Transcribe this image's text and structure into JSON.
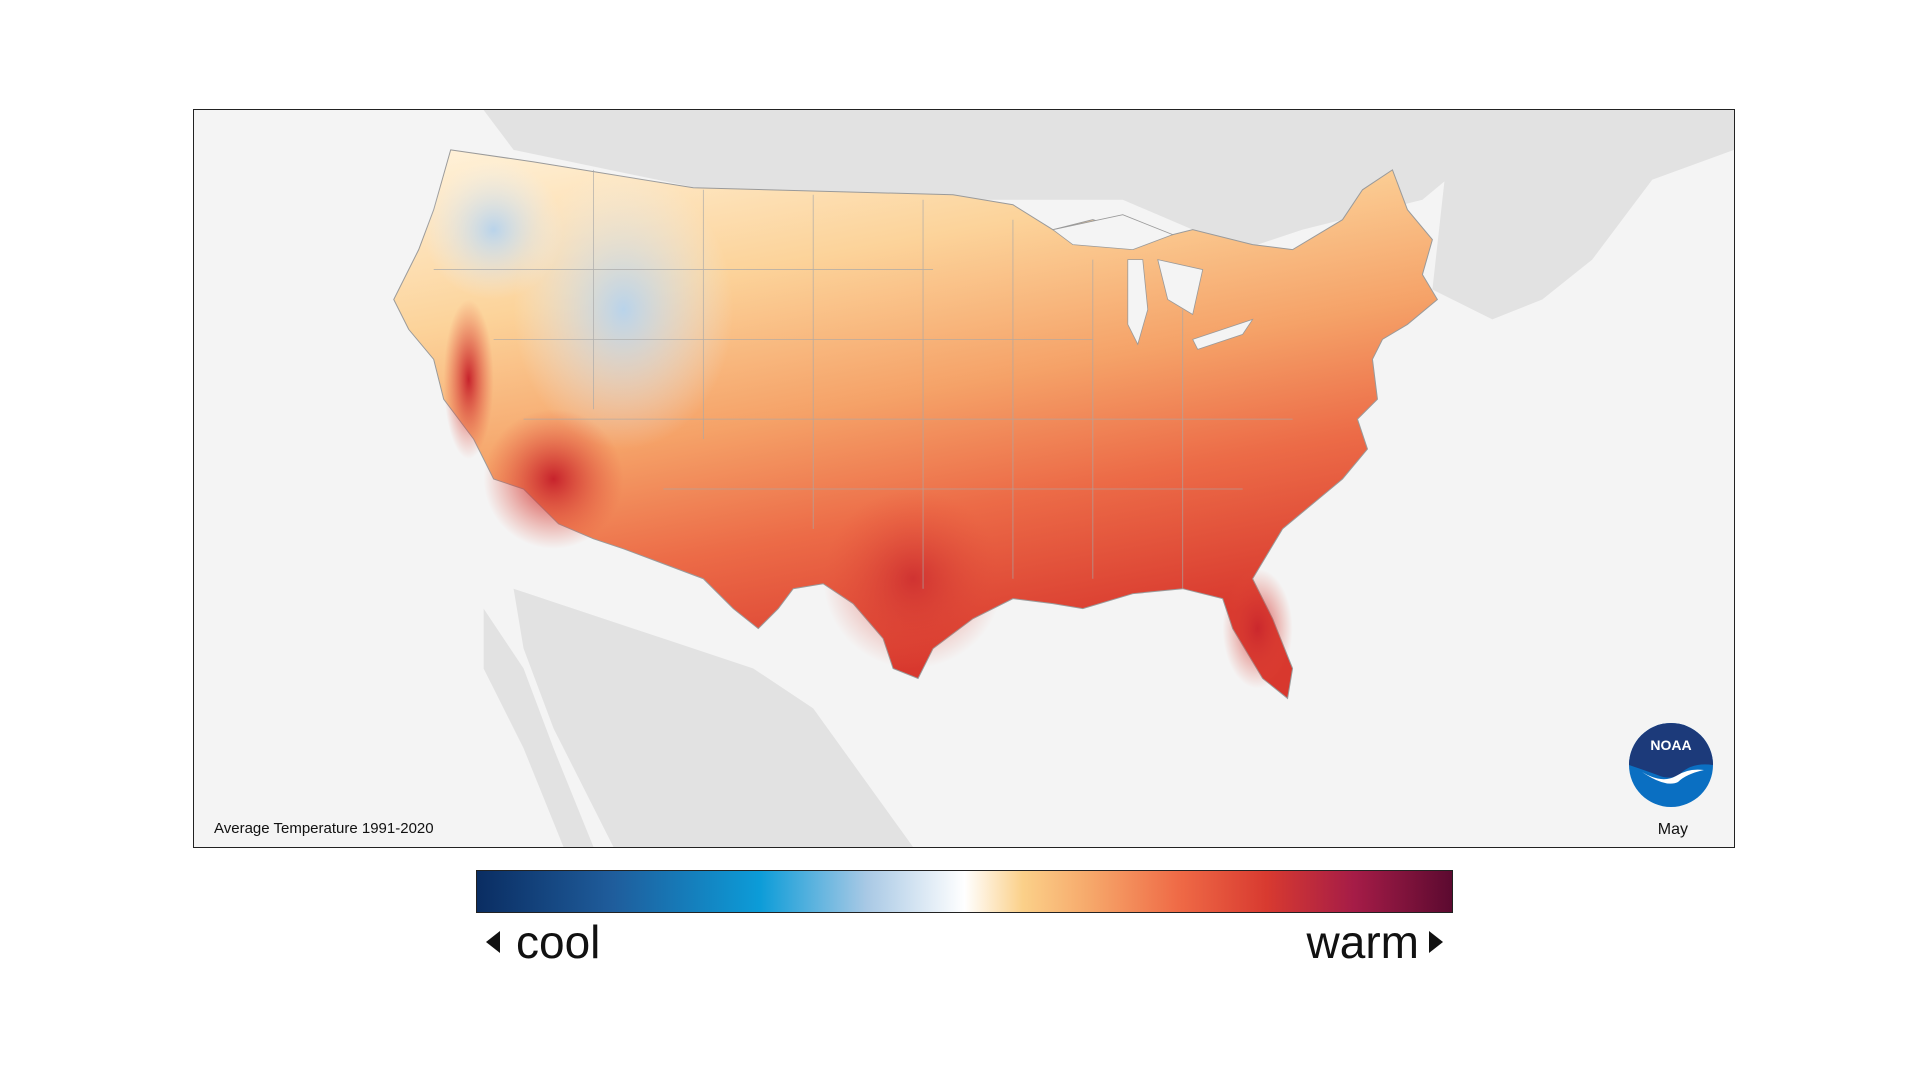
{
  "map": {
    "caption": "Average Temperature 1991-2020",
    "month": "May",
    "logo_text": "NOAA"
  },
  "legend": {
    "cool_label": "cool",
    "warm_label": "warm",
    "colors": [
      "#0a2d62",
      "#1f5d9c",
      "#0c9cd8",
      "#a9c9e5",
      "#ffffff",
      "#fbd089",
      "#f6a76a",
      "#ef6a46",
      "#d83a30",
      "#a51c47",
      "#5c0a30"
    ]
  },
  "colors": {
    "land_background": "#e2e2e2",
    "ocean_background": "#f4f4f4",
    "noaa_blue": "#0a6fc2",
    "noaa_navy": "#1c3a7a"
  }
}
